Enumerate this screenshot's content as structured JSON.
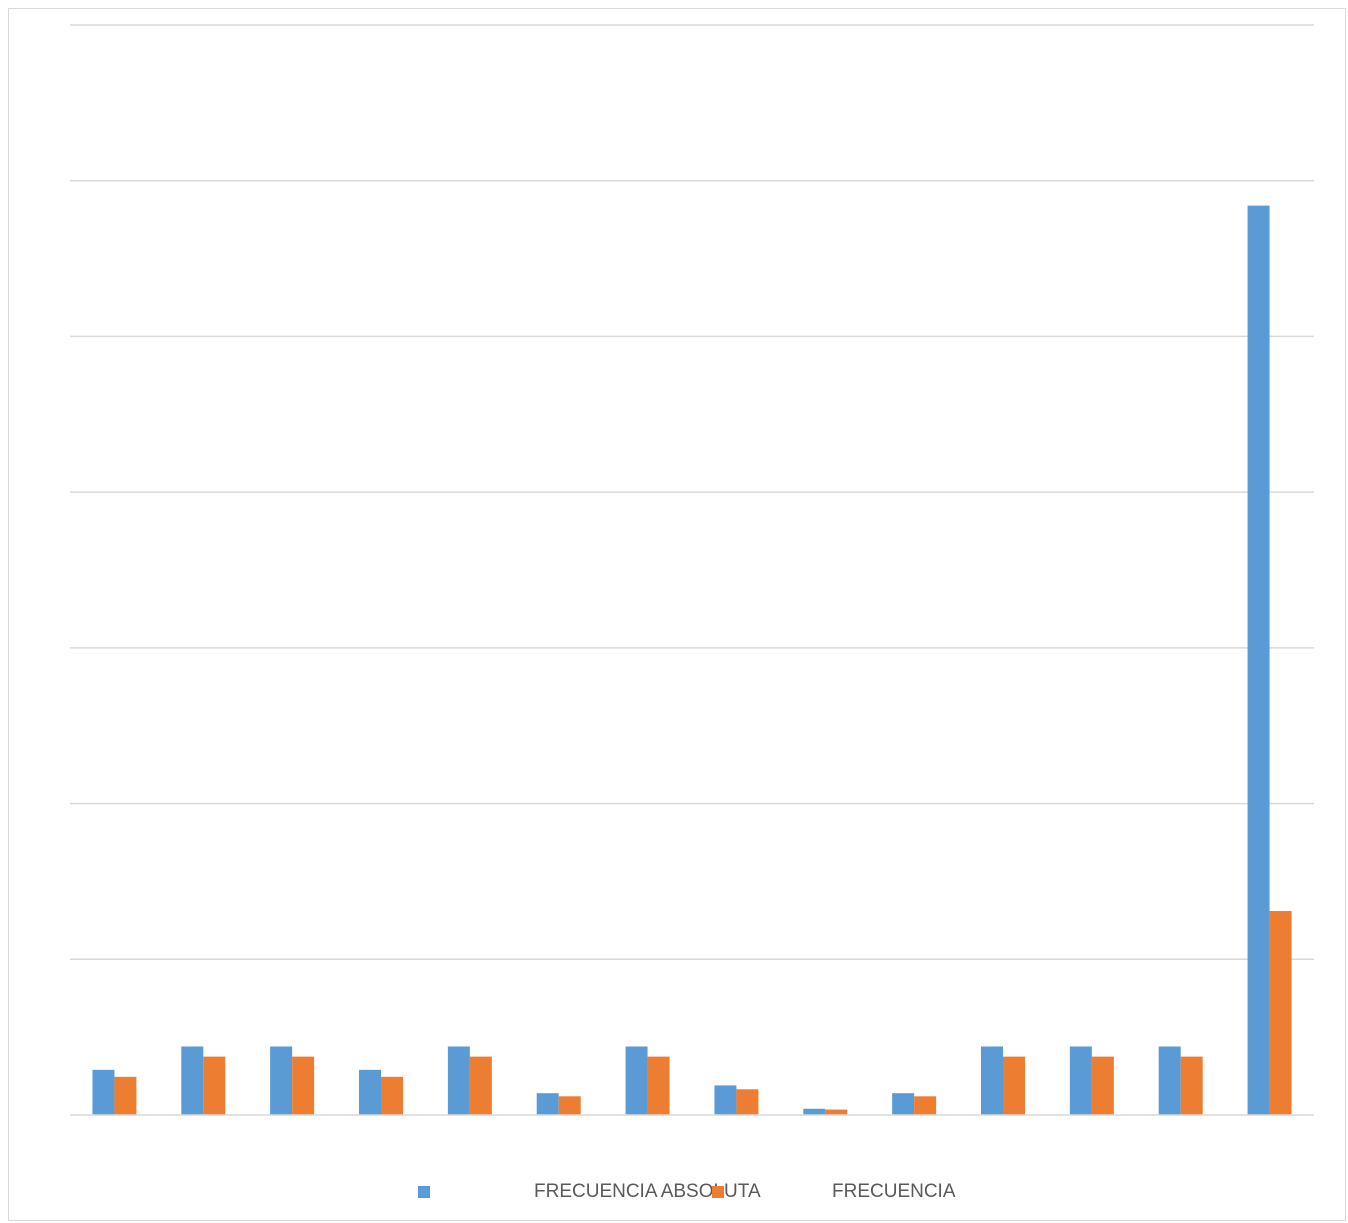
{
  "chart_data": {
    "type": "bar",
    "title": "",
    "xlabel": "",
    "ylabel": "",
    "categories": [
      "",
      "",
      "",
      "",
      "",
      "",
      "",
      "",
      "",
      "",
      "",
      "",
      "",
      ""
    ],
    "ylim": [
      0,
      7
    ],
    "grid": true,
    "legend_position": "bottom",
    "series": [
      {
        "name": "FRECUENCIA ABSOLUTA",
        "color": "#5b9bd5",
        "values": [
          0.29,
          0.44,
          0.44,
          0.29,
          0.44,
          0.14,
          0.44,
          0.19,
          0.04,
          0.14,
          0.44,
          0.44,
          0.44,
          5.84
        ]
      },
      {
        "name": "FRECUENCIA",
        "color": "#ed7d31",
        "values": [
          0.245,
          0.375,
          0.375,
          0.245,
          0.375,
          0.12,
          0.375,
          0.165,
          0.035,
          0.12,
          0.375,
          0.375,
          0.375,
          1.31
        ]
      }
    ]
  },
  "legend": {
    "items": [
      {
        "label": "FRECUENCIA ABSOLUTA",
        "color": "#5b9bd5"
      },
      {
        "label": "FRECUENCIA",
        "color": "#ed7d31"
      }
    ]
  }
}
